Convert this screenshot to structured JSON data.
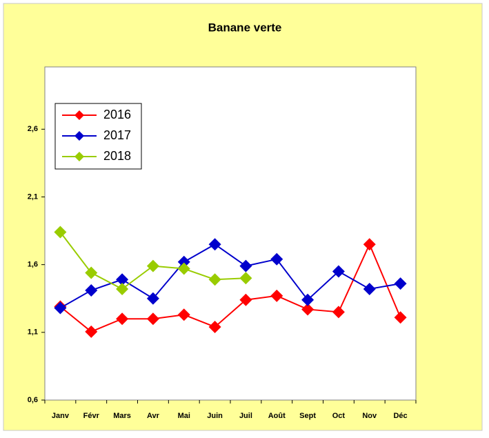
{
  "chart_data": {
    "type": "line",
    "title": "Banane verte",
    "categories": [
      "Janv",
      "Févr",
      "Mars",
      "Avr",
      "Mai",
      "Juin",
      "Juil",
      "Août",
      "Sept",
      "Oct",
      "Nov",
      "Déc"
    ],
    "series": [
      {
        "name": "2016",
        "color": "#ff0000",
        "values": [
          1.29,
          1.105,
          1.2,
          1.2,
          1.23,
          1.14,
          1.34,
          1.37,
          1.27,
          1.25,
          1.75,
          1.21
        ]
      },
      {
        "name": "2017",
        "color": "#0000cc",
        "values": [
          1.28,
          1.41,
          1.49,
          1.35,
          1.62,
          1.75,
          1.59,
          1.64,
          1.34,
          1.55,
          1.42,
          1.46
        ]
      },
      {
        "name": "2018",
        "color": "#99cc00",
        "values": [
          1.84,
          1.54,
          1.42,
          1.59,
          1.57,
          1.49,
          1.5,
          null,
          null,
          null,
          null,
          null
        ]
      }
    ],
    "ylim": [
      0.6,
      3.06
    ],
    "yticks": [
      {
        "value": 0.6,
        "label": "0,6"
      },
      {
        "value": 1.1,
        "label": "1,1"
      },
      {
        "value": 1.6,
        "label": "1,6"
      },
      {
        "value": 2.1,
        "label": "2,1"
      },
      {
        "value": 2.6,
        "label": "2,6"
      }
    ],
    "legend_position": "upper left"
  }
}
